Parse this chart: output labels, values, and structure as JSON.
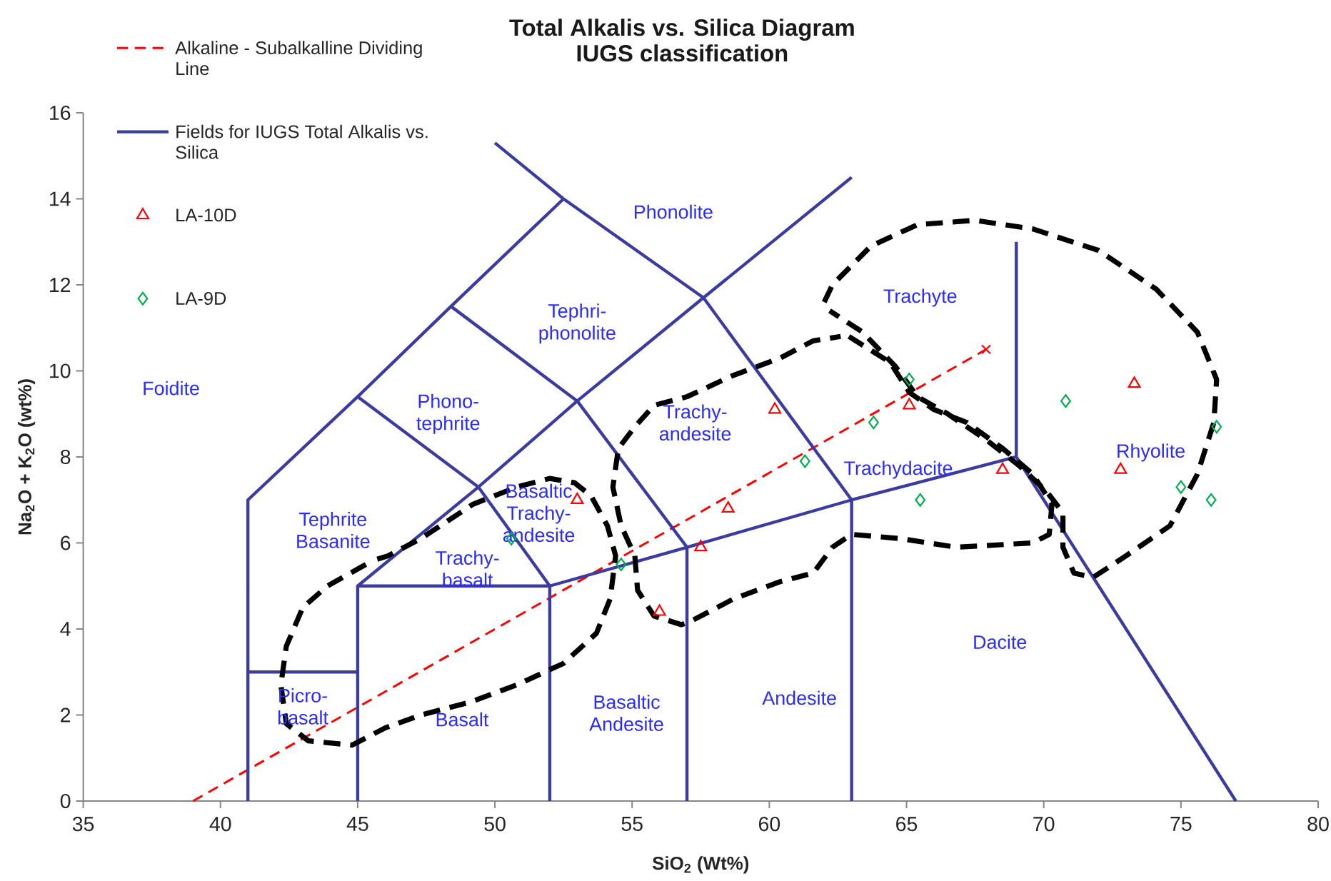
{
  "chart_data": {
    "type": "scatter",
    "title": "Total Alkalis vs. Silica Diagram",
    "subtitle": "IUGS classification",
    "xlabel": "SiO$_{2}$ (Wt%)",
    "ylabel": "Na$_{2}$O + K$_{2}$O (wt%)",
    "xlim": [
      35,
      80
    ],
    "ylim": [
      0,
      16
    ],
    "xticks": [
      35,
      40,
      45,
      50,
      55,
      60,
      65,
      70,
      75,
      80
    ],
    "yticks": [
      0,
      2,
      4,
      6,
      8,
      10,
      12,
      14,
      16
    ],
    "legend": "top left",
    "series": [
      {
        "type": "line",
        "name": "Alkaline - Subalkalline Dividing Line",
        "color": "#ff0000",
        "line_style": "dashed",
        "x": [
          39,
          67.9
        ],
        "values": [
          0,
          10.5
        ]
      },
      {
        "type": "line",
        "name": "Fields for IUGS Total Alkalis vs. Silica",
        "color": "#3c3ca0",
        "line_style": "solid",
        "x": [
          41,
          41,
          45,
          48.4,
          52.5,
          57.6,
          63,
          63,
          null,
          50,
          52.5,
          null,
          41,
          45,
          null,
          45,
          45,
          49.4,
          53,
          57.6,
          63,
          null,
          45,
          52,
          52,
          null,
          52,
          57,
          57,
          null,
          57,
          63,
          69,
          77,
          null,
          69,
          69,
          null,
          45,
          49.4,
          52,
          null,
          48.4,
          53,
          57
        ],
        "values": [
          0,
          7,
          9.4,
          11.5,
          14,
          11.7,
          7,
          0,
          null,
          15.3,
          14,
          null,
          3,
          3,
          null,
          0,
          5,
          7.3,
          9.3,
          11.7,
          14.5,
          null,
          5,
          5,
          0,
          null,
          5,
          5.9,
          0,
          null,
          5.9,
          7,
          8,
          0,
          null,
          8,
          13,
          null,
          9.4,
          7.3,
          5,
          null,
          11.5,
          9.3,
          5.9
        ]
      },
      {
        "type": "line",
        "color": "#000000",
        "line_style": "dashed",
        "x": [
          45.3,
          43.9,
          43.0,
          42.4,
          42.2,
          42.4,
          43.2,
          44.8,
          46.0,
          47.3,
          49.1,
          50.8,
          52.5,
          53.7,
          54.2,
          54.4,
          54.1,
          53.5,
          52.9,
          52.0,
          50.8,
          49.2,
          47.3,
          46.1,
          45.6
        ],
        "values": [
          5.5,
          5.0,
          4.5,
          3.6,
          2.7,
          1.8,
          1.4,
          1.3,
          1.7,
          2.0,
          2.3,
          2.7,
          3.2,
          3.9,
          4.7,
          5.7,
          6.4,
          7.1,
          7.4,
          7.5,
          7.3,
          6.9,
          6.1,
          5.7,
          5.6
        ]
      },
      {
        "type": "line",
        "color": "#000000",
        "line_style": "dashed",
        "x": [
          62.9,
          64.4,
          65.1,
          66.0,
          67.2,
          68.5,
          69.6,
          70.3,
          70.2,
          69.6,
          66.8,
          64.8,
          63.0,
          62.3,
          61.6,
          60.4,
          58.7,
          57.2,
          56.8,
          55.8,
          55.2,
          55.1,
          54.6,
          54.3,
          54.5,
          55.1,
          55.8,
          57.0,
          58.7,
          60.4,
          61.6,
          62.6
        ],
        "values": [
          10.8,
          10.2,
          9.5,
          9.1,
          8.8,
          8.2,
          7.6,
          6.9,
          6.2,
          6.0,
          5.9,
          6.1,
          6.2,
          5.9,
          5.3,
          5.1,
          4.7,
          4.2,
          4.1,
          4.3,
          4.9,
          5.7,
          6.4,
          7.3,
          8.2,
          8.7,
          9.2,
          9.4,
          9.9,
          10.3,
          10.7,
          10.8
        ]
      },
      {
        "type": "line",
        "color": "#000000",
        "line_style": "dashed",
        "x": [
          62.0,
          62.3,
          63.7,
          65.4,
          67.5,
          69.6,
          72.0,
          74.1,
          75.6,
          76.3,
          76.2,
          75.6,
          74.6,
          73.0,
          71.8,
          71.1,
          70.7,
          70.7,
          70.1,
          69.1,
          67.9,
          66.5,
          65.4,
          64.6,
          63.4,
          62.2
        ],
        "values": [
          11.6,
          12.0,
          12.9,
          13.4,
          13.5,
          13.3,
          12.8,
          11.9,
          10.9,
          9.8,
          8.8,
          7.6,
          6.4,
          5.7,
          5.2,
          5.3,
          5.9,
          6.7,
          7.2,
          7.8,
          8.4,
          9.0,
          9.4,
          10.1,
          10.9,
          11.4
        ]
      },
      {
        "color": "#ff0000",
        "marker": "cross",
        "x": [
          67.9
        ],
        "values": [
          10.5
        ]
      },
      {
        "name": "LA-10D",
        "color": "#ff0000",
        "marker": "triangle",
        "x": [
          53.0,
          56.0,
          57.5,
          58.5,
          60.2,
          65.1,
          68.5,
          72.8,
          73.3
        ],
        "values": [
          7.0,
          4.4,
          5.9,
          6.8,
          9.1,
          9.2,
          7.7,
          7.7,
          9.7
        ]
      },
      {
        "name": "LA-9D",
        "color": "#00b050",
        "marker": "diamond",
        "x": [
          50.6,
          54.6,
          61.3,
          63.8,
          65.1,
          65.5,
          70.8,
          75.0,
          76.1,
          76.3
        ],
        "values": [
          6.1,
          5.5,
          7.9,
          8.8,
          9.8,
          7.0,
          9.3,
          7.3,
          7.0,
          8.7
        ]
      }
    ],
    "annotations": [
      "Foidite",
      "Phonolite",
      "Tephri-phonolite",
      "Phono-tephrite",
      "Trachyte",
      "Trachy-andesite",
      "Trachydacite",
      "Rhyolite",
      "Tephrite Basanite",
      "Basaltic Trachy-andesite",
      "Trachy-basalt",
      "Picro-basalt",
      "Basalt",
      "Basaltic Andesite",
      "Andesite",
      "Dacite"
    ]
  }
}
